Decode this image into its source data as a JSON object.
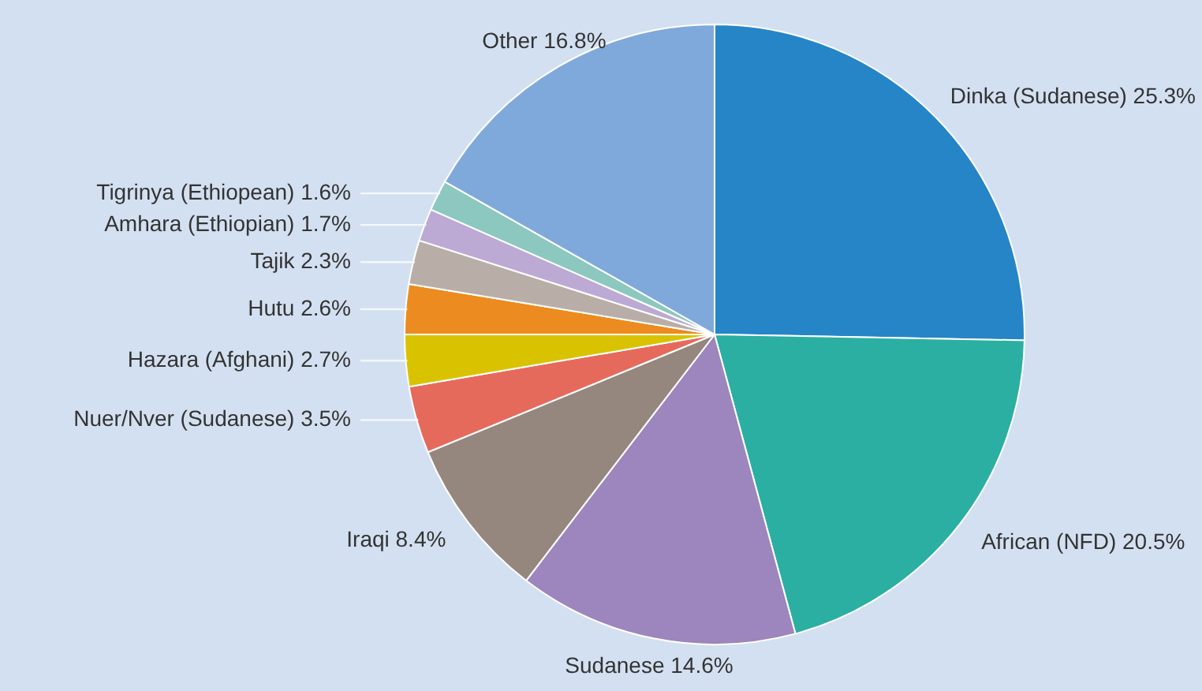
{
  "chart_data": {
    "type": "pie",
    "categories": [
      "Dinka (Sudanese)",
      "African (NFD)",
      "Sudanese",
      "Iraqi",
      "Nuer/Nver (Sudanese)",
      "Hazara (Afghani)",
      "Hutu",
      "Tajik",
      "Amhara (Ethiopian)",
      "Tigrinya (Ethiopean)",
      "Other"
    ],
    "values": [
      25.3,
      20.5,
      14.6,
      8.4,
      3.5,
      2.7,
      2.6,
      2.3,
      1.7,
      1.6,
      16.8
    ],
    "colors": [
      "#2585c7",
      "#2bafa3",
      "#9c86bd",
      "#95877e",
      "#e66a5c",
      "#d9c300",
      "#ec8b1f",
      "#b9aea7",
      "#bcaad4",
      "#8cc8bf",
      "#80a9db"
    ],
    "value_labels": [
      "25.3%",
      "20.5%",
      "14.6%",
      "8.4%",
      "3.5%",
      "2.7%",
      "2.6%",
      "2.3%",
      "1.7%",
      "1.6%",
      "16.8%"
    ]
  }
}
